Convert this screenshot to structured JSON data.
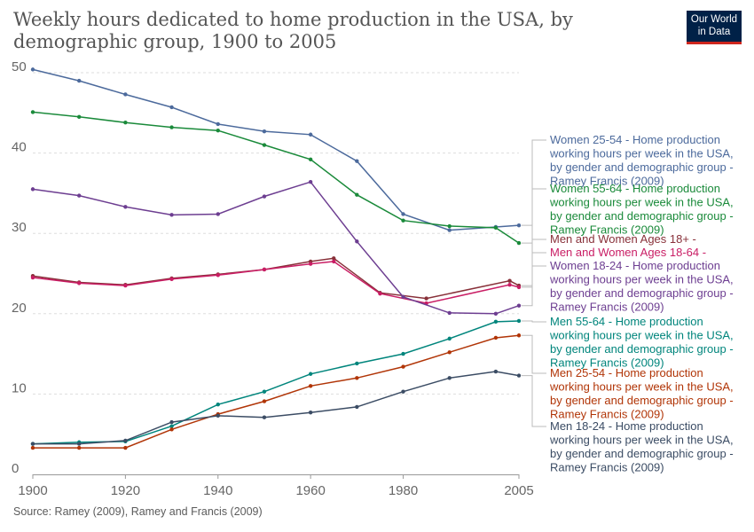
{
  "header": {
    "title": "Weekly hours dedicated to home production in the USA, by demographic group, 1900 to 2005",
    "logo_line1": "Our World",
    "logo_line2": "in Data"
  },
  "footer": {
    "source": "Source: Ramey (2009), Ramey and Francis (2009)"
  },
  "colors": {
    "women_25_54": "#4c6a9c",
    "women_55_64": "#00847e",
    "women_55_64_line": "#1a8a3a",
    "men_women_18plus": "#883039",
    "men_women_18_64": "#c91d64",
    "women_18_24": "#6d3e91",
    "men_55_64": "#00857c",
    "men_25_54": "#b13507",
    "men_18_24": "#3b4c64"
  },
  "chart_data": {
    "type": "line",
    "title": "Weekly hours dedicated to home production in the USA, by demographic group, 1900 to 2005",
    "xlabel": "",
    "ylabel": "",
    "xlim": [
      1900,
      2005
    ],
    "ylim": [
      0,
      50
    ],
    "x_ticks": [
      "1900",
      "1920",
      "1940",
      "1960",
      "1980",
      "2005"
    ],
    "y_ticks": [
      "0",
      "10",
      "20",
      "30",
      "40",
      "50"
    ],
    "grid": "horizontal dashed",
    "legend_placement": "right",
    "series": [
      {
        "name": "Women 25-54 - Home production working hours per week in the USA, by gender and demographic group - Ramey Francis (2009)",
        "legend_lines": [
          "Women 25-54 - Home production",
          "working hours per week in the USA,",
          "by gender and demographic group -",
          "Ramey Francis (2009)"
        ],
        "color": "#4c6a9c",
        "x": [
          1900,
          1910,
          1920,
          1930,
          1940,
          1950,
          1960,
          1970,
          1980,
          1990,
          2000,
          2005
        ],
        "y": [
          50.4,
          49.0,
          47.3,
          45.7,
          43.6,
          42.7,
          42.3,
          39.0,
          32.4,
          30.4,
          30.8,
          31.0
        ]
      },
      {
        "name": "Women 55-64 - Home production working hours per week in the USA, by gender and demographic group - Ramey Francis (2009)",
        "legend_lines": [
          "Women 55-64 - Home production",
          "working hours per week in the USA,",
          "by gender and demographic group -",
          "Ramey Francis (2009)"
        ],
        "color": "#1a8a3a",
        "x": [
          1900,
          1910,
          1920,
          1930,
          1940,
          1950,
          1960,
          1970,
          1980,
          1990,
          2000,
          2005
        ],
        "y": [
          45.1,
          44.5,
          43.8,
          43.2,
          42.8,
          41.0,
          39.2,
          34.8,
          31.6,
          30.9,
          30.7,
          28.8
        ]
      },
      {
        "name": "Men and Women Ages 18+ -",
        "legend_lines": [
          "Men and Women Ages 18+ -"
        ],
        "color": "#883039",
        "x": [
          1900,
          1910,
          1920,
          1930,
          1940,
          1950,
          1960,
          1965,
          1975,
          1985,
          2003,
          2005
        ],
        "y": [
          24.7,
          23.9,
          23.6,
          24.4,
          24.9,
          25.5,
          26.5,
          26.9,
          22.6,
          21.9,
          24.1,
          23.5
        ]
      },
      {
        "name": "Men and Women Ages 18-64 -",
        "legend_lines": [
          "Men and Women Ages 18-64 -"
        ],
        "color": "#c91d64",
        "x": [
          1900,
          1910,
          1920,
          1930,
          1940,
          1950,
          1960,
          1965,
          1975,
          1985,
          2003,
          2005
        ],
        "y": [
          24.5,
          23.8,
          23.5,
          24.3,
          24.8,
          25.5,
          26.2,
          26.5,
          22.5,
          21.3,
          23.6,
          23.3
        ]
      },
      {
        "name": "Women 18-24 - Home production working hours per week in the USA, by gender and demographic group - Ramey Francis (2009)",
        "legend_lines": [
          "Women 18-24 - Home production",
          "working hours per week in the USA,",
          "by gender and demographic group -",
          "Ramey Francis (2009)"
        ],
        "color": "#6d3e91",
        "x": [
          1900,
          1910,
          1920,
          1930,
          1940,
          1950,
          1960,
          1970,
          1980,
          1990,
          2000,
          2005
        ],
        "y": [
          35.5,
          34.7,
          33.3,
          32.3,
          32.4,
          34.6,
          36.4,
          29.0,
          22.1,
          20.1,
          20.0,
          21.0
        ]
      },
      {
        "name": "Men 55-64 - Home production working hours per week in the USA, by gender and demographic group - Ramey Francis (2009)",
        "legend_lines": [
          "Men 55-64 - Home production",
          "working hours per week in the USA,",
          "by gender and demographic group -",
          "Ramey Francis (2009)"
        ],
        "color": "#00857c",
        "x": [
          1900,
          1910,
          1920,
          1930,
          1940,
          1950,
          1960,
          1970,
          1980,
          1990,
          2000,
          2005
        ],
        "y": [
          3.8,
          4.0,
          4.1,
          6.0,
          8.7,
          10.3,
          12.5,
          13.8,
          15.0,
          16.9,
          19.0,
          19.1
        ]
      },
      {
        "name": "Men 25-54 - Home production working hours per week in the USA, by gender and demographic group - Ramey Francis (2009)",
        "legend_lines": [
          "Men 25-54 - Home production",
          "working hours per week in the USA,",
          "by gender and demographic group -",
          "Ramey Francis (2009)"
        ],
        "color": "#b13507",
        "x": [
          1900,
          1910,
          1920,
          1930,
          1940,
          1950,
          1960,
          1970,
          1980,
          1990,
          2000,
          2005
        ],
        "y": [
          3.3,
          3.3,
          3.3,
          5.6,
          7.5,
          9.1,
          11.0,
          12.0,
          13.4,
          15.2,
          17.0,
          17.3
        ]
      },
      {
        "name": "Men 18-24 - Home production working hours per week in the USA, by gender and demographic group - Ramey Francis (2009)",
        "legend_lines": [
          "Men 18-24 - Home production",
          "working hours per week in the USA,",
          "by gender and demographic group -",
          "Ramey Francis (2009)"
        ],
        "color": "#3b4c64",
        "x": [
          1900,
          1910,
          1920,
          1930,
          1940,
          1950,
          1960,
          1970,
          1980,
          1990,
          2000,
          2005
        ],
        "y": [
          3.8,
          3.8,
          4.2,
          6.5,
          7.3,
          7.1,
          7.7,
          8.4,
          10.3,
          12.0,
          12.8,
          12.3
        ]
      }
    ]
  }
}
